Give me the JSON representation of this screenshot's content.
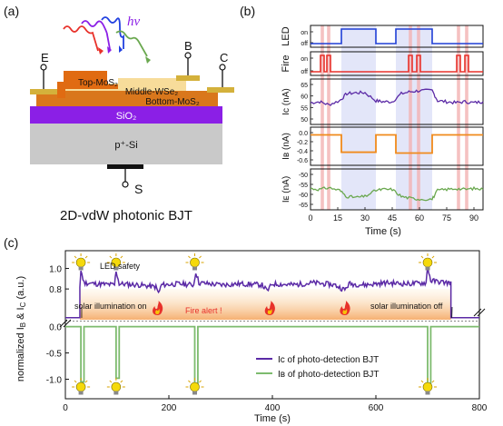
{
  "panels": {
    "a": {
      "letter": "(a)",
      "photon": "hν",
      "terminals": {
        "E": "E",
        "B": "B",
        "C": "C",
        "S": "S"
      },
      "layers": {
        "top": "Top-MoS₂",
        "middle": "Middle-WSe₂",
        "bottom": "Bottom-MoS₂",
        "oxide": "SiO₂",
        "substrate": "p⁺-Si"
      },
      "caption": "2D-vdW photonic BJT"
    },
    "b": {
      "letter": "(b)",
      "xlabel": "Time (s)",
      "xticks": [
        0,
        15,
        30,
        45,
        60,
        75,
        90
      ],
      "rows": [
        {
          "ylabel": "LED",
          "ticks": [
            "on",
            "off"
          ],
          "color": "#1f3fd6"
        },
        {
          "ylabel": "Fire",
          "ticks": [
            "on",
            "off"
          ],
          "color": "#e8312a"
        },
        {
          "ylabel": "Iᴄ (nA)",
          "ticks": [
            "65",
            "60",
            "55",
            "50"
          ],
          "color": "#5b2aa6"
        },
        {
          "ylabel": "Iʙ (nA)",
          "ticks": [
            "0.0",
            "-0.2",
            "-0.4",
            "-0.6"
          ],
          "color": "#f08a1c"
        },
        {
          "ylabel": "Iᴇ (nA)",
          "ticks": [
            "-50",
            "-55",
            "-60",
            "-65"
          ],
          "color": "#6aa84f"
        }
      ]
    },
    "c": {
      "letter": "(c)",
      "annotations": {
        "led_safety": "LED safety",
        "solar_on": "solar illumination on",
        "solar_off": "solar illumination off",
        "fire_alert": "Fire alert !"
      },
      "legend": {
        "ic": "Iᴄ of photo-detection BJT",
        "ib": "Iʙ of photo-detection BJT"
      }
    }
  },
  "chart_data": [
    {
      "type": "line",
      "panel": "b",
      "xlabel": "Time (s)",
      "xlim": [
        0,
        95
      ],
      "led_on_intervals": [
        [
          17,
          36
        ],
        [
          47,
          67
        ]
      ],
      "fire_pulses": [
        6.5,
        10,
        55,
        59.5,
        81.5,
        86
      ],
      "series": [
        {
          "name": "LED",
          "x": [
            0,
            17,
            17,
            36,
            36,
            47,
            47,
            67,
            67,
            95
          ],
          "y": [
            0,
            0,
            1,
            1,
            0,
            0,
            1,
            1,
            0,
            0
          ]
        },
        {
          "name": "I_C (nA)",
          "x": [
            0,
            5,
            10,
            16,
            20,
            25,
            30,
            36,
            40,
            45,
            50,
            55,
            60,
            67,
            70,
            75,
            80,
            85,
            90,
            95
          ],
          "y": [
            56,
            56.5,
            55,
            57,
            60.5,
            61,
            61,
            57,
            56.5,
            56.5,
            60.5,
            61.5,
            62,
            62,
            57,
            56.5,
            56,
            56.5,
            56,
            56.5
          ]
        },
        {
          "name": "I_B (nA)",
          "x": [
            0,
            17,
            17,
            36,
            36,
            47,
            47,
            67,
            67,
            95
          ],
          "y": [
            0,
            0,
            -0.42,
            -0.42,
            0,
            0,
            -0.44,
            -0.44,
            0,
            0
          ]
        },
        {
          "name": "I_E (nA)",
          "x": [
            0,
            5,
            10,
            16,
            20,
            25,
            30,
            36,
            40,
            45,
            50,
            55,
            60,
            67,
            70,
            75,
            80,
            85,
            90,
            95
          ],
          "y": [
            -56,
            -56.5,
            -55.5,
            -57,
            -60.5,
            -61,
            -60.5,
            -57,
            -56.5,
            -56.5,
            -60.5,
            -61.5,
            -62,
            -62,
            -57,
            -56.5,
            -56,
            -56.5,
            -56,
            -56.5
          ]
        }
      ],
      "ylim": {
        "LED": [
          0,
          1
        ],
        "Fire": [
          0,
          1
        ],
        "I_C": [
          47,
          66
        ],
        "I_B": [
          -0.65,
          0.1
        ],
        "I_E": [
          -66,
          -47
        ]
      }
    },
    {
      "type": "line",
      "panel": "c",
      "xlabel": "Time (s)",
      "ylabel": "normalized I_B & I_C (a.u.)",
      "xlim": [
        0,
        800
      ],
      "xticks": [
        0,
        200,
        400,
        600,
        800
      ],
      "upper_ylim": [
        0.5,
        1.12
      ],
      "upper_yticks": [
        1.0,
        0.8
      ],
      "lower_ylim": [
        -1.25,
        0.08
      ],
      "lower_yticks": [
        0.0,
        -0.5,
        -1.0
      ],
      "events": [
        30,
        98,
        250,
        700
      ],
      "fire_events": [
        178,
        395,
        540
      ],
      "series": [
        {
          "name": "I_C of photo-detection BJT",
          "color": "#5b2aa6",
          "x": [
            0,
            28,
            28,
            30,
            36,
            60,
            95,
            98,
            104,
            140,
            175,
            180,
            186,
            220,
            248,
            252,
            258,
            300,
            340,
            380,
            390,
            400,
            440,
            480,
            520,
            540,
            548,
            580,
            620,
            660,
            697,
            700,
            706,
            740,
            745,
            745,
            800
          ],
          "y": [
            0.52,
            0.52,
            0.82,
            0.98,
            0.86,
            0.85,
            0.84,
            0.98,
            0.85,
            0.84,
            0.82,
            0.76,
            0.84,
            0.85,
            0.84,
            0.97,
            0.86,
            0.84,
            0.85,
            0.84,
            0.78,
            0.85,
            0.84,
            0.86,
            0.84,
            0.79,
            0.85,
            0.84,
            0.86,
            0.85,
            0.86,
            1.02,
            0.88,
            0.86,
            0.86,
            0.52,
            0.52
          ]
        },
        {
          "name": "I_B of photo-detection BJT",
          "color": "#7dbb6e",
          "x": [
            0,
            30,
            30,
            36,
            36,
            98,
            98,
            104,
            104,
            250,
            250,
            256,
            256,
            700,
            700,
            706,
            706,
            800
          ],
          "y": [
            0,
            0,
            -1.05,
            -1.05,
            0,
            0,
            -0.98,
            -0.98,
            0,
            0,
            -1.1,
            -1.1,
            0,
            0,
            -1.15,
            -1.15,
            0,
            0
          ]
        }
      ]
    }
  ]
}
